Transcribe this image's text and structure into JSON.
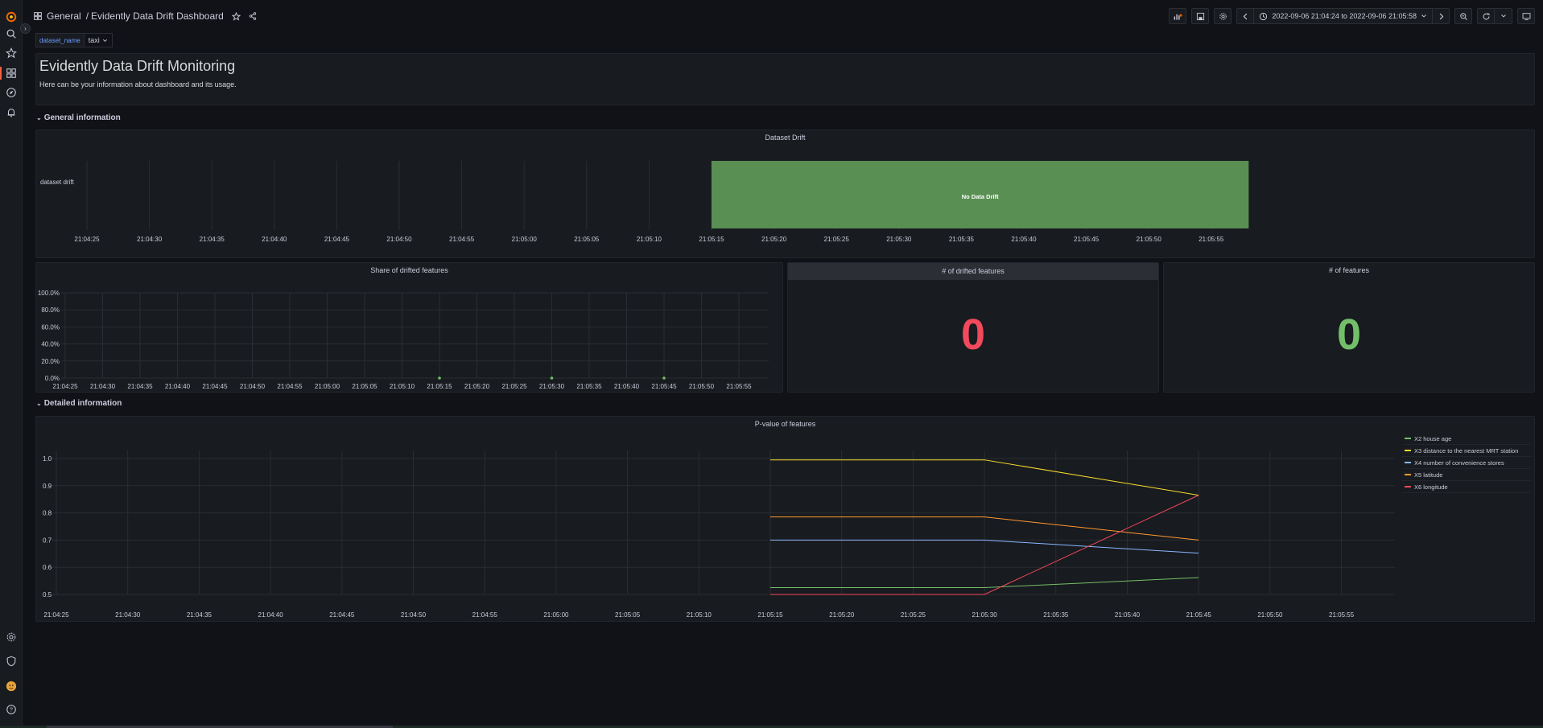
{
  "breadcrumb": {
    "folder": "General",
    "separator": "/",
    "dashboard": "Evidently Data Drift Dashboard"
  },
  "time_range": {
    "label": "2022-09-06 21:04:24 to 2022-09-06 21:05:58"
  },
  "variable": {
    "label": "dataset_name",
    "value": "taxi"
  },
  "text_panel": {
    "title": "Evidently Data Drift Monitoring",
    "body": "Here can be your information about dashboard and its usage."
  },
  "rows": {
    "general": "General information",
    "detailed": "Detailed information"
  },
  "time_ticks_top": [
    "21:04:25",
    "21:04:30",
    "21:04:35",
    "21:04:40",
    "21:04:45",
    "21:04:50",
    "21:04:55",
    "21:05:00",
    "21:05:05",
    "21:05:10",
    "21:05:15",
    "21:05:20",
    "21:05:25",
    "21:05:30",
    "21:05:35",
    "21:05:40",
    "21:05:45",
    "21:05:50",
    "21:05:55"
  ],
  "dataset_drift": {
    "title": "Dataset Drift",
    "row_label": "dataset drift",
    "state_label": "No Data Drift",
    "state_color": "#5a8f54",
    "state_start": "21:05:15",
    "state_end": "21:05:58"
  },
  "stats": {
    "drifted": {
      "title": "# of drifted features",
      "value": "0",
      "color": "#f2495c"
    },
    "features": {
      "title": "# of features",
      "value": "0",
      "color": "#73bf69"
    }
  },
  "chart_data": [
    {
      "type": "scatter",
      "title": "Share of drifted features",
      "yticks": [
        "0.0%",
        "20.0%",
        "40.0%",
        "60.0%",
        "80.0%",
        "100.0%"
      ],
      "ylim": [
        0,
        100
      ],
      "xticks": [
        "21:04:25",
        "21:04:30",
        "21:04:35",
        "21:04:40",
        "21:04:45",
        "21:04:50",
        "21:04:55",
        "21:05:00",
        "21:05:05",
        "21:05:10",
        "21:05:15",
        "21:05:20",
        "21:05:25",
        "21:05:30",
        "21:05:35",
        "21:05:40",
        "21:05:45",
        "21:05:50",
        "21:05:55"
      ],
      "x": [
        "21:05:15",
        "21:05:30",
        "21:05:45"
      ],
      "values": [
        0,
        0,
        0
      ],
      "color": "#73bf69"
    },
    {
      "type": "line",
      "title": "P-value of features",
      "yticks": [
        "0.5",
        "0.6",
        "0.7",
        "0.8",
        "0.9",
        "1.0"
      ],
      "ylim": [
        0.5,
        1.0
      ],
      "xticks": [
        "21:04:25",
        "21:04:30",
        "21:04:35",
        "21:04:40",
        "21:04:45",
        "21:04:50",
        "21:04:55",
        "21:05:00",
        "21:05:05",
        "21:05:10",
        "21:05:15",
        "21:05:20",
        "21:05:25",
        "21:05:30",
        "21:05:35",
        "21:05:40",
        "21:05:45",
        "21:05:50",
        "21:05:55"
      ],
      "x": [
        "21:05:15",
        "21:05:30",
        "21:05:45"
      ],
      "series": [
        {
          "name": "X2 house age",
          "values": [
            0.525,
            0.525,
            0.562
          ],
          "color": "#73bf69"
        },
        {
          "name": "X3 distance to the nearest MRT station",
          "values": [
            0.995,
            0.995,
            0.865
          ],
          "color": "#fade2a"
        },
        {
          "name": "X4 number of convenience stores",
          "values": [
            0.7,
            0.7,
            0.652
          ],
          "color": "#8ab8ff"
        },
        {
          "name": "X5 latitude",
          "values": [
            0.785,
            0.785,
            0.7
          ],
          "color": "#ff9830"
        },
        {
          "name": "X6 longitude",
          "values": [
            0.5,
            0.5,
            0.865
          ],
          "color": "#f2495c"
        }
      ]
    }
  ]
}
